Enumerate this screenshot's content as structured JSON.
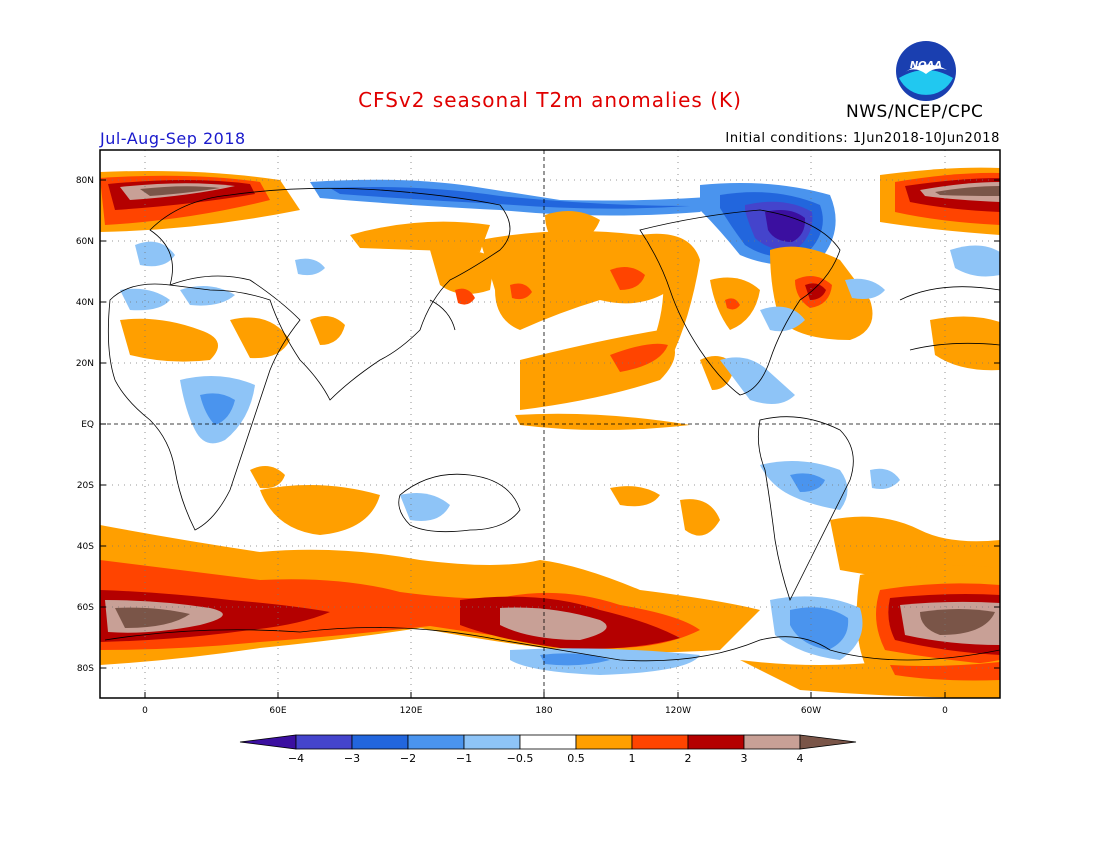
{
  "header": {
    "title": "CFSv2 seasonal T2m anomalies (K)",
    "period": "Jul-Aug-Sep 2018",
    "initial_conditions": "Initial conditions: 1Jun2018-10Jun2018",
    "agency": "NWS/NCEP/CPC",
    "logo_text": "NOAA"
  },
  "axes": {
    "lat_labels": [
      "80N",
      "60N",
      "40N",
      "20N",
      "EQ",
      "20S",
      "40S",
      "60S",
      "80S"
    ],
    "lon_labels": [
      "0",
      "60E",
      "120E",
      "180",
      "120W",
      "60W",
      "0"
    ]
  },
  "colorbar": {
    "labels": [
      "-4",
      "-3",
      "-2",
      "-1",
      "-0.5",
      "0.5",
      "1",
      "2",
      "3",
      "4"
    ],
    "colors": [
      "#3b0fa0",
      "#4444cc",
      "#2266dd",
      "#4a94ee",
      "#8ec4f7",
      "#ffffff",
      "#ff9f00",
      "#ff4400",
      "#b40000",
      "#c8a096",
      "#7a5548"
    ]
  },
  "colors": {
    "cold_extreme": "#3b0fa0",
    "cold_strong": "#4444cc",
    "cold": "#2266dd",
    "cool": "#4a94ee",
    "cool_light": "#8ec4f7",
    "warm_light": "#ff9f00",
    "warm": "#ff4400",
    "warm_strong": "#b40000",
    "hot": "#c8a096",
    "hot_extreme": "#7a5548",
    "title": "#e00000",
    "period": "#1a1acc"
  }
}
